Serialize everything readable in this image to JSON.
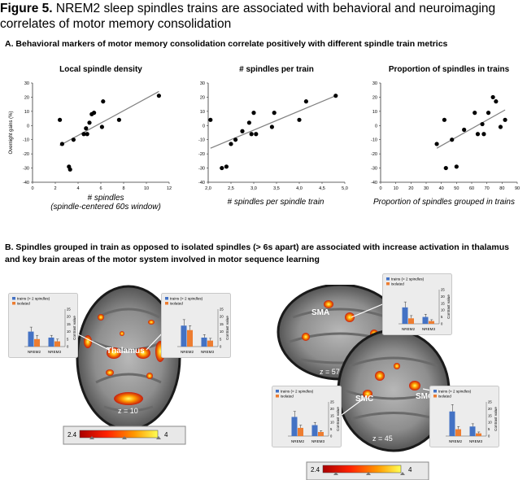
{
  "figure": {
    "label": "Figure 5.",
    "title": "NREM2 sleep spindles trains are associated with behavioral and neuroimaging correlates of motor memory consolidation"
  },
  "section_a": "A. Behavioral markers of motor memory consolidation correlate positively with different spindle train metrics",
  "section_b": "B. Spindles grouped in train as opposed to isolated spindles (> 6s apart) are associated with increase activation in thalamus and key brain areas of the motor system involved in motor sequence learning",
  "scatter_captions": [
    {
      "line1": "# spindles",
      "line2": "(spindle-centered 60s window)"
    },
    {
      "line1": "# spindles per spindle train",
      "line2": ""
    },
    {
      "line1": "Proportion of spindles grouped in trains",
      "line2": ""
    }
  ],
  "brain_labels": {
    "thalamus": "Thalamus",
    "z_axial": "z = 10",
    "sma": "SMA",
    "z_sma": "z = 57",
    "smc_left": "SMC",
    "smc_right": "SMC",
    "z_smc": "z = 45"
  },
  "colorbar": {
    "min": "2.4",
    "max": "4"
  },
  "colors": {
    "trains": "#4472c4",
    "isolated": "#ed7d31",
    "fit_line": "#808080",
    "points": "#000000"
  },
  "chart_data": [
    {
      "type": "scatter",
      "title": "Local spindle density",
      "ylabel": "Overnight gains (%)",
      "xlim": [
        0,
        12
      ],
      "ylim": [
        -40,
        30
      ],
      "xticks": [
        "0",
        "2",
        "4",
        "6",
        "8",
        "10",
        "12"
      ],
      "yticks": [
        "-40",
        "-30",
        "-20",
        "-10",
        "0",
        "10",
        "20",
        "30"
      ],
      "x": [
        2.4,
        2.6,
        3.2,
        3.6,
        4.5,
        4.7,
        4.8,
        5.0,
        5.2,
        5.4,
        6.2,
        6.1,
        7.6,
        3.3,
        11.1
      ],
      "y": [
        4,
        -13,
        -29,
        -10,
        -6,
        -2,
        -6,
        2,
        8,
        9,
        17,
        -1,
        4,
        -31,
        21
      ],
      "fit": [
        [
          2.4,
          -14
        ],
        [
          11.1,
          24
        ]
      ]
    },
    {
      "type": "scatter",
      "title": "# spindles per train",
      "ylabel": "",
      "xlim": [
        2.0,
        5.0
      ],
      "ylim": [
        -40,
        30
      ],
      "xticks": [
        "2,0",
        "2,5",
        "3,0",
        "3,5",
        "4,0",
        "4,5",
        "5,0"
      ],
      "yticks": [
        "-40",
        "-30",
        "-20",
        "-10",
        "0",
        "10",
        "20",
        "30"
      ],
      "x": [
        2.05,
        2.3,
        2.4,
        2.5,
        2.6,
        2.75,
        2.9,
        2.95,
        3.0,
        3.05,
        3.4,
        3.45,
        4.0,
        4.15,
        4.8
      ],
      "y": [
        4,
        -30,
        -29,
        -13,
        -10,
        -4,
        2,
        -6,
        9,
        -6,
        -1,
        9,
        4,
        17,
        21
      ],
      "fit": [
        [
          2.05,
          -16
        ],
        [
          4.8,
          21
        ]
      ]
    },
    {
      "type": "scatter",
      "title": "Proportion of spindles in trains",
      "ylabel": "",
      "xlim": [
        0,
        90
      ],
      "ylim": [
        -40,
        30
      ],
      "xticks": [
        "0",
        "10",
        "20",
        "30",
        "40",
        "50",
        "60",
        "70",
        "80",
        "90"
      ],
      "yticks": [
        "-40",
        "-30",
        "-20",
        "-10",
        "0",
        "10",
        "20",
        "30"
      ],
      "x": [
        37,
        42,
        43,
        47,
        50,
        55,
        62,
        64,
        67,
        68,
        71,
        74,
        76,
        79,
        82
      ],
      "y": [
        -13,
        4,
        -30,
        -10,
        -29,
        -3,
        9,
        -6,
        1,
        -6,
        9,
        20,
        17,
        -1,
        4
      ],
      "fit": [
        [
          37,
          -16
        ],
        [
          82,
          11
        ]
      ]
    },
    {
      "type": "bar",
      "categories": [
        "NREM2",
        "NREM3"
      ],
      "series": [
        {
          "name": "trains (> 2 spindles)",
          "values": [
            10,
            6
          ]
        },
        {
          "name": "isolated",
          "values": [
            5,
            3.5
          ]
        }
      ],
      "errors": [
        [
          3,
          1.5
        ],
        [
          2.5,
          1.5
        ]
      ],
      "ylabel": "Contrast value",
      "ylim": [
        0,
        25
      ],
      "yticks": [
        "0",
        "5",
        "10",
        "15",
        "20",
        "25"
      ]
    },
    {
      "type": "bar",
      "categories": [
        "NREM2",
        "NREM3"
      ],
      "series": [
        {
          "name": "trains (> 2 spindles)",
          "values": [
            14,
            6
          ]
        },
        {
          "name": "isolated",
          "values": [
            11,
            4
          ]
        }
      ],
      "errors": [
        [
          4,
          2
        ],
        [
          3,
          1.5
        ]
      ],
      "ylabel": "Contrast value",
      "ylim": [
        0,
        25
      ],
      "yticks": [
        "0",
        "5",
        "10",
        "15",
        "20",
        "25"
      ]
    },
    {
      "type": "bar",
      "categories": [
        "NREM2",
        "NREM3"
      ],
      "series": [
        {
          "name": "trains (> 2 spindles)",
          "values": [
            12,
            5
          ]
        },
        {
          "name": "isolated",
          "values": [
            4,
            2
          ]
        }
      ],
      "errors": [
        [
          4,
          2
        ],
        [
          2,
          1
        ]
      ],
      "ylabel": "Contrast value",
      "ylim": [
        0,
        25
      ],
      "yticks": [
        "0",
        "5",
        "10",
        "15",
        "20",
        "25"
      ]
    },
    {
      "type": "bar",
      "categories": [
        "NREM2",
        "NREM3"
      ],
      "series": [
        {
          "name": "trains (> 2 spindles)",
          "values": [
            14,
            8
          ]
        },
        {
          "name": "isolated",
          "values": [
            6,
            3
          ]
        }
      ],
      "errors": [
        [
          4,
          2
        ],
        [
          2,
          1
        ]
      ],
      "ylabel": "Contrast value",
      "ylim": [
        0,
        25
      ],
      "yticks": [
        "0",
        "5",
        "10",
        "15",
        "20",
        "25"
      ]
    },
    {
      "type": "bar",
      "categories": [
        "NREM2",
        "NREM3"
      ],
      "series": [
        {
          "name": "trains (> 2 spindles)",
          "values": [
            18,
            7
          ]
        },
        {
          "name": "isolated",
          "values": [
            5,
            2
          ]
        }
      ],
      "errors": [
        [
          5,
          2
        ],
        [
          2,
          1
        ]
      ],
      "ylabel": "Contrast value",
      "ylim": [
        0,
        25
      ],
      "yticks": [
        "0",
        "5",
        "10",
        "15",
        "20",
        "25"
      ]
    }
  ]
}
